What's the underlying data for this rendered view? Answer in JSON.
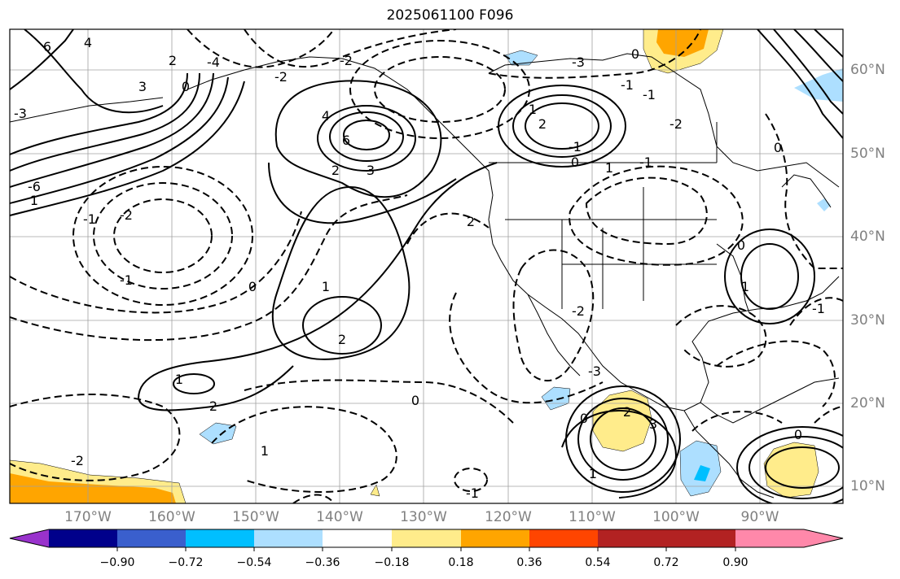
{
  "title": "2025061100 F096",
  "lon_labels": [
    "170°W",
    "160°W",
    "150°W",
    "140°W",
    "130°W",
    "120°W",
    "110°W",
    "100°W",
    "90°W"
  ],
  "lat_labels": [
    "60°N",
    "50°N",
    "40°N",
    "30°N",
    "20°N",
    "10°N"
  ],
  "colorbar": {
    "ticks": [
      "−0.90",
      "−0.72",
      "−0.54",
      "−0.36",
      "−0.18",
      "0.18",
      "0.36",
      "0.54",
      "0.72",
      "0.90"
    ],
    "colors": [
      "#9932CC",
      "#00008B",
      "#3A5FCD",
      "#00BFFF",
      "#ADDFFF",
      "#FFFFFF",
      "#FFEC8B",
      "#FFA500",
      "#FF4500",
      "#B22222",
      "#FF88AA"
    ]
  },
  "contour_labels": [
    "6",
    "4",
    "3",
    "2",
    "0",
    "-3",
    "-4",
    "-6",
    "1",
    "-1",
    "-2",
    "4",
    "6",
    "2",
    "3",
    "-2",
    "1",
    "2",
    "0",
    "-1",
    "-2",
    "1",
    "2",
    "-1",
    "0",
    "-3",
    "-1",
    "0",
    "1",
    "-1",
    "0",
    "-1",
    "-2",
    "1",
    "2",
    "1",
    "-2",
    "2",
    "0",
    "-1",
    "-2",
    "-3",
    "0",
    "1",
    "2",
    "3",
    "0",
    "1",
    "-1",
    "0"
  ],
  "shading_colors": {
    "light_blue": "#ADDFFF",
    "deep_sky": "#00BFFF",
    "light_yellow": "#FFEC8B",
    "orange": "#FFA500"
  }
}
